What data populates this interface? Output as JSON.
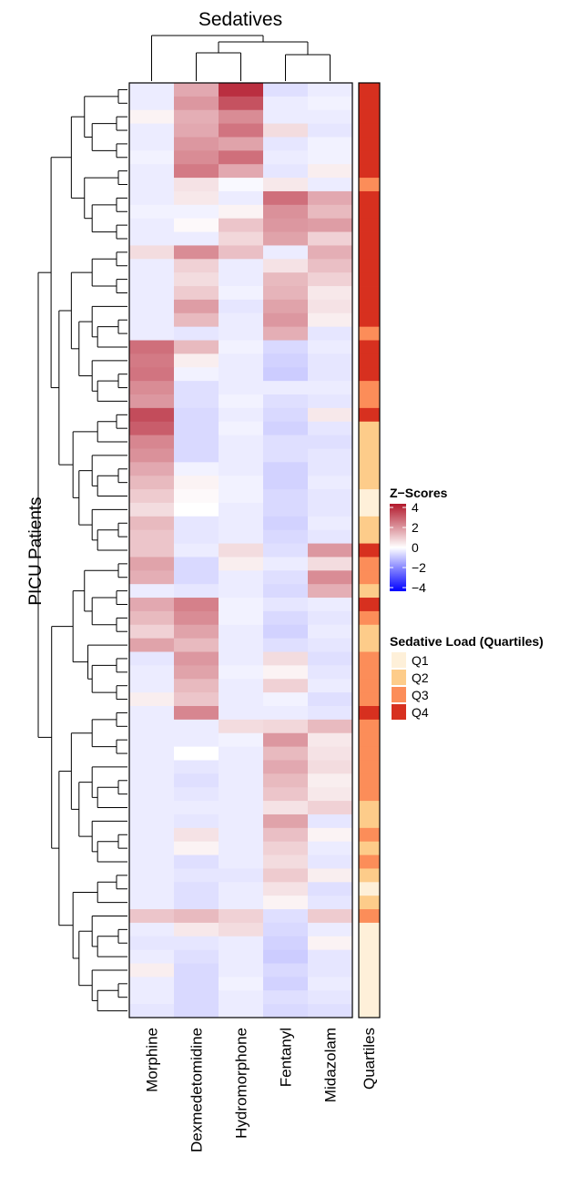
{
  "chart_data": {
    "type": "heatmap",
    "title": "Sedatives",
    "ylabel": "PICU Patients",
    "columns": [
      "Morphine",
      "Dexmedetomidine",
      "Hydromorphone",
      "Fentanyl",
      "Midazolam"
    ],
    "annotation_column": "Quartiles",
    "row_dendrogram": true,
    "column_dendrogram": true,
    "zscore_legend": {
      "title": "Z−Scores",
      "ticks": [
        "4",
        "2",
        "0",
        "−2",
        "−4"
      ],
      "range": [
        -4,
        4
      ],
      "colors": {
        "low": "#0000ff",
        "mid": "#ffffff",
        "high": "#b2182b"
      }
    },
    "quartile_legend": {
      "title": "Sedative Load (Quartiles)",
      "labels": [
        "Q1",
        "Q2",
        "Q3",
        "Q4"
      ],
      "colors": [
        "#fef0d9",
        "#fdcc8a",
        "#fc8d59",
        "#d7301f"
      ]
    },
    "z_rows": [
      [
        -0.3,
        1.5,
        3.6,
        -0.5,
        -0.3
      ],
      [
        -0.3,
        1.8,
        3.0,
        -0.3,
        -0.2
      ],
      [
        0.2,
        1.4,
        2.0,
        -0.3,
        -0.3
      ],
      [
        -0.3,
        1.5,
        2.4,
        0.6,
        -0.4
      ],
      [
        -0.3,
        1.8,
        1.6,
        -0.4,
        -0.2
      ],
      [
        -0.2,
        2.0,
        2.5,
        -0.3,
        -0.2
      ],
      [
        -0.3,
        2.3,
        1.5,
        -0.4,
        0.3
      ],
      [
        -0.3,
        0.5,
        -0.1,
        0.4,
        -0.3
      ],
      [
        -0.3,
        0.4,
        -0.3,
        2.5,
        1.5
      ],
      [
        -0.2,
        -0.2,
        0.2,
        1.9,
        1.2
      ],
      [
        -0.3,
        0.1,
        1.0,
        1.8,
        1.7
      ],
      [
        -0.3,
        -0.3,
        0.7,
        1.6,
        0.8
      ],
      [
        0.6,
        2.0,
        1.1,
        -0.3,
        1.4
      ],
      [
        -0.3,
        0.8,
        -0.3,
        0.5,
        1.1
      ],
      [
        -0.3,
        0.6,
        -0.3,
        1.2,
        0.8
      ],
      [
        -0.3,
        0.9,
        -0.2,
        1.3,
        0.4
      ],
      [
        -0.3,
        1.7,
        -0.4,
        1.6,
        0.5
      ],
      [
        -0.3,
        1.2,
        -0.3,
        1.8,
        0.3
      ],
      [
        -0.3,
        -0.4,
        -0.3,
        1.4,
        -0.4
      ],
      [
        2.5,
        1.2,
        -0.2,
        -0.6,
        -0.3
      ],
      [
        2.3,
        0.3,
        -0.3,
        -0.7,
        -0.4
      ],
      [
        2.4,
        -0.2,
        -0.3,
        -0.8,
        -0.4
      ],
      [
        2.0,
        -0.5,
        -0.3,
        -0.3,
        -0.3
      ],
      [
        1.8,
        -0.5,
        -0.2,
        -0.5,
        -0.4
      ],
      [
        3.1,
        -0.6,
        -0.3,
        -0.6,
        0.4
      ],
      [
        2.8,
        -0.6,
        -0.2,
        -0.7,
        -0.4
      ],
      [
        2.1,
        -0.6,
        -0.3,
        -0.5,
        -0.5
      ],
      [
        1.9,
        -0.6,
        -0.3,
        -0.5,
        -0.4
      ],
      [
        1.5,
        -0.2,
        -0.3,
        -0.7,
        -0.4
      ],
      [
        1.2,
        0.2,
        -0.2,
        -0.7,
        -0.3
      ],
      [
        0.9,
        0.1,
        -0.2,
        -0.6,
        -0.4
      ],
      [
        0.6,
        0.0,
        -0.3,
        -0.6,
        -0.4
      ],
      [
        1.2,
        -0.4,
        -0.3,
        -0.7,
        -0.3
      ],
      [
        1.0,
        -0.4,
        -0.3,
        -0.6,
        -0.4
      ],
      [
        1.0,
        -0.3,
        0.6,
        -0.5,
        1.8
      ],
      [
        1.6,
        -0.6,
        0.3,
        -0.3,
        0.6
      ],
      [
        1.4,
        -0.6,
        -0.3,
        -0.5,
        2.0
      ],
      [
        -0.3,
        -0.4,
        -0.3,
        -0.6,
        1.4
      ],
      [
        1.5,
        2.2,
        -0.2,
        -0.4,
        -0.3
      ],
      [
        1.2,
        2.0,
        -0.2,
        -0.6,
        -0.4
      ],
      [
        0.8,
        1.6,
        -0.3,
        -0.7,
        -0.3
      ],
      [
        1.6,
        1.2,
        -0.3,
        -0.5,
        -0.4
      ],
      [
        -0.4,
        1.8,
        -0.3,
        0.6,
        -0.5
      ],
      [
        -0.3,
        1.6,
        -0.2,
        0.2,
        -0.4
      ],
      [
        -0.3,
        1.2,
        -0.3,
        0.8,
        -0.3
      ],
      [
        0.3,
        1.0,
        -0.3,
        -0.2,
        -0.5
      ],
      [
        -0.3,
        2.1,
        -0.3,
        -0.3,
        -0.4
      ],
      [
        -0.3,
        -0.3,
        0.6,
        0.7,
        1.2
      ],
      [
        -0.3,
        -0.3,
        -0.2,
        1.8,
        0.4
      ],
      [
        -0.3,
        0.0,
        -0.3,
        1.2,
        0.5
      ],
      [
        -0.3,
        -0.4,
        -0.3,
        1.5,
        0.6
      ],
      [
        -0.3,
        -0.5,
        -0.3,
        1.2,
        0.3
      ],
      [
        -0.3,
        -0.4,
        -0.3,
        1.0,
        0.4
      ],
      [
        -0.3,
        -0.3,
        -0.3,
        0.5,
        0.8
      ],
      [
        -0.3,
        -0.4,
        -0.3,
        1.6,
        -0.4
      ],
      [
        -0.3,
        0.5,
        -0.3,
        1.1,
        0.2
      ],
      [
        -0.3,
        0.2,
        -0.3,
        0.8,
        -0.3
      ],
      [
        -0.3,
        -0.5,
        -0.3,
        0.6,
        -0.4
      ],
      [
        -0.3,
        -0.4,
        -0.4,
        0.9,
        0.3
      ],
      [
        -0.3,
        -0.5,
        -0.3,
        0.5,
        -0.5
      ],
      [
        -0.3,
        -0.5,
        -0.3,
        0.2,
        -0.4
      ],
      [
        1.0,
        1.2,
        0.8,
        -0.5,
        0.9
      ],
      [
        -0.3,
        0.4,
        0.6,
        -0.6,
        -0.3
      ],
      [
        -0.4,
        -0.4,
        -0.3,
        -0.7,
        0.2
      ],
      [
        -0.3,
        -0.5,
        -0.3,
        -0.8,
        -0.4
      ],
      [
        0.3,
        -0.6,
        -0.3,
        -0.6,
        -0.4
      ],
      [
        -0.3,
        -0.6,
        -0.2,
        -0.7,
        -0.3
      ],
      [
        -0.3,
        -0.6,
        -0.3,
        -0.5,
        -0.4
      ],
      [
        -0.4,
        -0.6,
        -0.3,
        -0.6,
        -0.5
      ]
    ],
    "quartile_rows": [
      "Q4",
      "Q4",
      "Q4",
      "Q4",
      "Q4",
      "Q4",
      "Q4",
      "Q3",
      "Q4",
      "Q4",
      "Q4",
      "Q4",
      "Q4",
      "Q4",
      "Q4",
      "Q4",
      "Q4",
      "Q4",
      "Q3",
      "Q4",
      "Q4",
      "Q4",
      "Q3",
      "Q3",
      "Q4",
      "Q2",
      "Q2",
      "Q2",
      "Q2",
      "Q2",
      "Q1",
      "Q1",
      "Q2",
      "Q2",
      "Q4",
      "Q3",
      "Q3",
      "Q2",
      "Q4",
      "Q3",
      "Q2",
      "Q2",
      "Q3",
      "Q3",
      "Q3",
      "Q3",
      "Q4",
      "Q3",
      "Q3",
      "Q3",
      "Q3",
      "Q3",
      "Q3",
      "Q2",
      "Q2",
      "Q3",
      "Q2",
      "Q3",
      "Q2",
      "Q1",
      "Q2",
      "Q3",
      "Q1",
      "Q1",
      "Q1",
      "Q1",
      "Q1",
      "Q1",
      "Q1"
    ]
  }
}
